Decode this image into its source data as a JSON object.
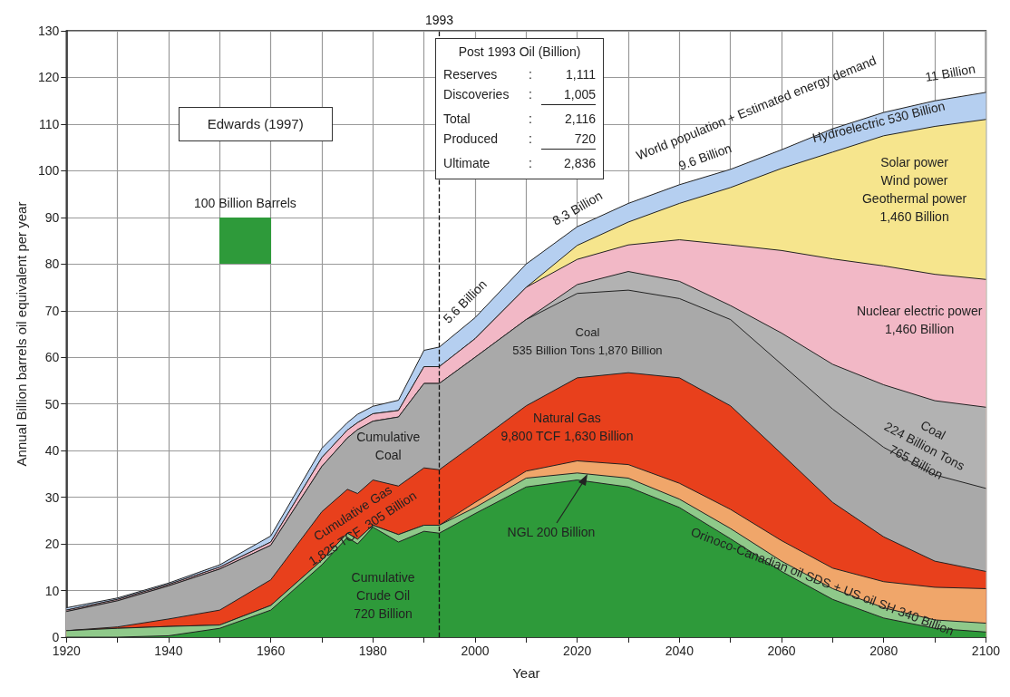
{
  "chart_data": {
    "type": "area",
    "stacked": true,
    "xlabel": "Year",
    "ylabel": "Annual Billion barrels oil equivalent per year",
    "x": [
      1920,
      1930,
      1940,
      1950,
      1960,
      1970,
      1975,
      1977,
      1980,
      1985,
      1990,
      1993,
      2000,
      2010,
      2020,
      2030,
      2040,
      2050,
      2060,
      2070,
      2080,
      2090,
      2100
    ],
    "series": [
      {
        "color": "#2e9a3a",
        "values": [
          0,
          0,
          0.3,
          1.9,
          5.8,
          15.5,
          21.4,
          20,
          23.6,
          20.4,
          22.7,
          22.3,
          26.5,
          32.2,
          33.7,
          32.2,
          27.8,
          21.1,
          14.1,
          8.1,
          4.1,
          1.9,
          1.1
        ]
      },
      {
        "color": "#8fc98a",
        "values": [
          1.4,
          1.9,
          2.0,
          0.7,
          1.0,
          1.0,
          0.9,
          1.0,
          0.4,
          1.6,
          1.3,
          1.7,
          1.3,
          1.9,
          1.5,
          1.9,
          1.8,
          2.2,
          2.2,
          2.3,
          2.2,
          1.8,
          1.9
        ]
      },
      {
        "color": "#f0a66a",
        "values": [
          0,
          0,
          0,
          0,
          0,
          0,
          0,
          0,
          0,
          0,
          0,
          0,
          1.1,
          1.5,
          2.6,
          2.9,
          3.4,
          4.1,
          4.4,
          4.4,
          5.6,
          7.0,
          7.4
        ]
      },
      {
        "color": "#e8401c",
        "values": [
          0,
          0.3,
          1.6,
          3.2,
          5.5,
          10.4,
          9.4,
          9.8,
          9.7,
          10.4,
          12.3,
          11.9,
          12.6,
          14.0,
          17.8,
          19.7,
          22.6,
          22.2,
          18.6,
          14.1,
          9.6,
          5.6,
          3.7
        ]
      },
      {
        "color": "#a9a9a9",
        "values": [
          4.1,
          5.6,
          7.1,
          8.8,
          7.4,
          9.7,
          11.0,
          13.7,
          12.6,
          14.8,
          18.1,
          18.5,
          18.5,
          18.5,
          18.1,
          17.7,
          17.0,
          18.5,
          19.2,
          20.0,
          19.2,
          18.5,
          17.8
        ]
      },
      {
        "color": "#b2b2b2",
        "values": [
          0,
          0,
          0,
          0,
          0,
          0,
          0,
          0,
          0,
          0,
          0,
          0,
          0,
          0,
          1.9,
          4.0,
          3.7,
          3.0,
          6.7,
          9.6,
          13.4,
          15.9,
          17.4
        ]
      },
      {
        "color": "#f2b8c6",
        "values": [
          0.3,
          0.3,
          0.3,
          0.4,
          0.7,
          1.9,
          1.7,
          1.5,
          1.6,
          1.4,
          3.6,
          3.6,
          4.0,
          6.9,
          5.4,
          5.7,
          8.9,
          13.0,
          17.7,
          22.6,
          25.5,
          27.1,
          27.4
        ]
      },
      {
        "color": "#f6e58d",
        "values": [
          0,
          0,
          0,
          0,
          0,
          0,
          0,
          0,
          0,
          0,
          0,
          0,
          0,
          0,
          3.0,
          4.9,
          7.8,
          12.3,
          17.6,
          22.9,
          27.9,
          31.7,
          34.3
        ]
      },
      {
        "color": "#b5cff0",
        "values": [
          0.5,
          0.3,
          0.3,
          0.5,
          1.3,
          2.0,
          1.6,
          1.8,
          1.6,
          2.2,
          3.5,
          4.2,
          4.5,
          5.0,
          4.0,
          4.0,
          4.0,
          3.9,
          4.0,
          5.0,
          5.0,
          5.5,
          5.8
        ]
      }
    ],
    "xlim": [
      1920,
      2100
    ],
    "xticks": [
      1920,
      {
        "value": 1930,
        "label": null
      },
      1940,
      {
        "value": 1950,
        "label": null
      },
      1960,
      {
        "value": 1970,
        "label": null
      },
      1980,
      {
        "value": 1990,
        "label": null
      },
      2000,
      {
        "value": 2010,
        "label": null
      },
      2020,
      {
        "value": 2030,
        "label": null
      },
      2040,
      {
        "value": 2050,
        "label": null
      },
      2060,
      {
        "value": 2070,
        "label": null
      },
      2080,
      {
        "value": 2090,
        "label": null
      },
      2100
    ],
    "ylim": [
      0,
      130
    ],
    "yticks": [
      0,
      10,
      20,
      30,
      40,
      50,
      60,
      70,
      80,
      90,
      100,
      110,
      120,
      130
    ],
    "grid": true,
    "ref_lines": [
      {
        "axis": "x",
        "value": 1993,
        "label": "1993",
        "line_style": "dashed"
      }
    ],
    "annotations": [
      "Edwards (1997)",
      "Post 1993 Oil (Billion)",
      "Reserves : 1,111",
      "Discoveries : 1,005",
      "Total : 2,116",
      "Produced : 720",
      "Ultimate : 2,836",
      "Cumulative\nCrude Oil\n720 Billion",
      {
        "text": "NGL 200 Billion",
        "x": 2022,
        "y": 35
      },
      "Cumulative Gas\n1,825 TCF  305 Billion",
      "Cumulative\nCoal",
      "Natural Gas\n9,800 TCF 1,630 Billion",
      "Coal\n535 Billion Tons 1,870 Billion",
      "Coal\n224 Billion Tons\n765 Billion",
      "Orinoco-Canadian oil SDS + US oil SH 340 Billion",
      "Nuclear electric power\n1,460 Billion",
      "Solar power\nWind power\nGeothermal power\n1,460 Billion",
      "Hydroelectric 530 Billion",
      "World population + Estimated energy demand",
      "11 Billion",
      "9.6 Billion",
      "8.3 Billion",
      "5.6 Billion",
      "100 Billion Barrels"
    ]
  }
}
